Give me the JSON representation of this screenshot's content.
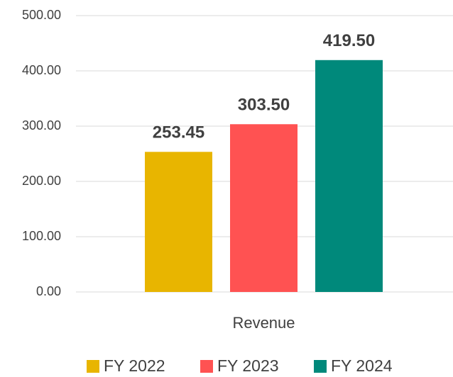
{
  "chart_data": {
    "type": "bar",
    "categories": [
      "Revenue"
    ],
    "series": [
      {
        "name": "FY 2022",
        "color": "#e8b500",
        "values": [
          253.45
        ]
      },
      {
        "name": "FY 2023",
        "color": "#ff5252",
        "values": [
          303.5
        ],
        "value_labels": [
          "303.50"
        ]
      },
      {
        "name": "FY 2024",
        "color": "#00897b",
        "values": [
          419.5
        ],
        "value_labels": [
          "419.50"
        ]
      }
    ],
    "ylim": [
      0,
      500
    ],
    "yticks": [
      {
        "value": 0,
        "label": "0.00"
      },
      {
        "value": 100,
        "label": "100.00"
      },
      {
        "value": 200,
        "label": "200.00"
      },
      {
        "value": 300,
        "label": "300.00"
      },
      {
        "value": 400,
        "label": "400.00"
      },
      {
        "value": 500,
        "label": "500.00"
      }
    ],
    "grid": true,
    "legend": "bottom"
  }
}
